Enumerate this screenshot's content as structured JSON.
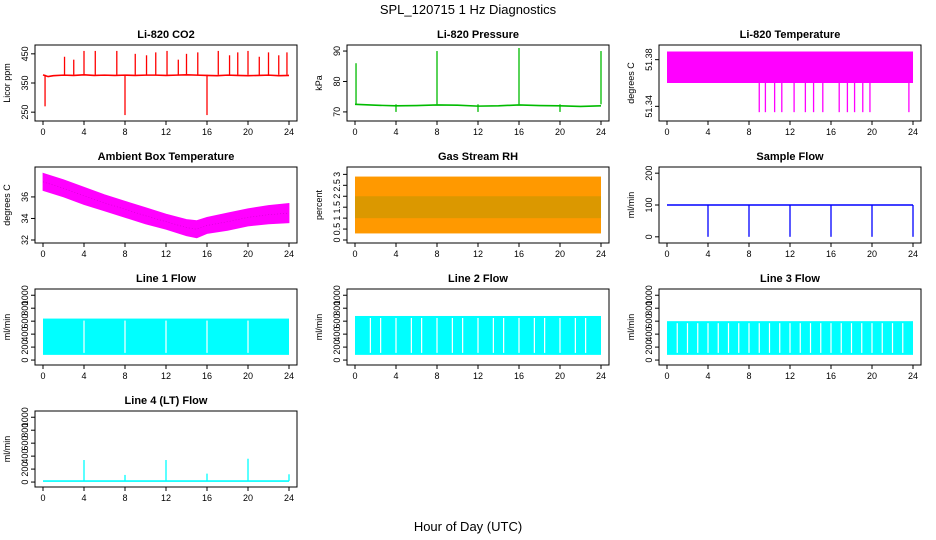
{
  "figure": {
    "title": "SPL_120715  1 Hz Diagnostics",
    "xlabel": "Hour of Day (UTC)"
  },
  "chart_data": [
    {
      "type": "line",
      "title": "Li-820 CO2",
      "ylabel": "Licor ppm",
      "color": "#ff0000",
      "xlim": [
        0,
        24
      ],
      "ylim": [
        230,
        470
      ],
      "xticks": [
        0,
        4,
        8,
        12,
        16,
        20,
        24
      ],
      "yticks": [
        250,
        350,
        450
      ],
      "x": [
        0,
        0.5,
        1,
        2,
        3,
        4,
        5,
        6,
        7,
        8,
        9,
        10,
        11,
        12,
        13,
        14,
        15,
        16,
        17,
        18,
        19,
        20,
        21,
        22,
        23,
        24
      ],
      "y": [
        378,
        372,
        375,
        377,
        376,
        378,
        376,
        377,
        376,
        377,
        376,
        377,
        377,
        376,
        377,
        378,
        377,
        376,
        375,
        377,
        376,
        375,
        376,
        377,
        375,
        376
      ],
      "spikes": [
        {
          "x": 0.2,
          "y": 270
        },
        {
          "x": 2.1,
          "y": 440
        },
        {
          "x": 3.0,
          "y": 430
        },
        {
          "x": 4.0,
          "y": 460
        },
        {
          "x": 5.1,
          "y": 460
        },
        {
          "x": 7.2,
          "y": 460
        },
        {
          "x": 8.0,
          "y": 240
        },
        {
          "x": 9.0,
          "y": 450
        },
        {
          "x": 10.1,
          "y": 445
        },
        {
          "x": 11.0,
          "y": 455
        },
        {
          "x": 12.1,
          "y": 460
        },
        {
          "x": 13.2,
          "y": 430
        },
        {
          "x": 14.0,
          "y": 450
        },
        {
          "x": 15.1,
          "y": 455
        },
        {
          "x": 16.0,
          "y": 240
        },
        {
          "x": 17.1,
          "y": 460
        },
        {
          "x": 18.2,
          "y": 445
        },
        {
          "x": 19.0,
          "y": 455
        },
        {
          "x": 20.0,
          "y": 460
        },
        {
          "x": 21.1,
          "y": 440
        },
        {
          "x": 22.0,
          "y": 455
        },
        {
          "x": 23.0,
          "y": 445
        },
        {
          "x": 23.8,
          "y": 455
        }
      ]
    },
    {
      "type": "line",
      "title": "Li-820 Pressure",
      "ylabel": "kPa",
      "color": "#00bb00",
      "xlim": [
        0,
        24
      ],
      "ylim": [
        68,
        91
      ],
      "xticks": [
        0,
        4,
        8,
        12,
        16,
        20,
        24
      ],
      "yticks": [
        70,
        80,
        90
      ],
      "x": [
        0,
        2,
        4,
        6,
        8,
        10,
        12,
        14,
        16,
        18,
        20,
        22,
        24
      ],
      "y": [
        72.5,
        72.2,
        72.0,
        72.1,
        72.3,
        72.2,
        71.9,
        72.0,
        72.3,
        72.1,
        72.0,
        71.8,
        72.0
      ],
      "spikes": [
        {
          "x": 0.1,
          "y": 86
        },
        {
          "x": 4.0,
          "y": 70
        },
        {
          "x": 8.0,
          "y": 90
        },
        {
          "x": 12.0,
          "y": 70
        },
        {
          "x": 16.0,
          "y": 91
        },
        {
          "x": 20.0,
          "y": 70
        },
        {
          "x": 24.0,
          "y": 90
        }
      ]
    },
    {
      "type": "area",
      "title": "Li-820 Temperature",
      "ylabel": "degrees C",
      "color": "#ff00ff",
      "xlim": [
        0,
        24
      ],
      "ylim": [
        51.33,
        51.39
      ],
      "xticks": [
        0,
        4,
        8,
        12,
        16,
        20,
        24
      ],
      "yticks": [
        51.34,
        51.38
      ],
      "band": [
        51.36,
        51.387
      ],
      "spikes": [
        {
          "x": 9.0,
          "y": 51.335
        },
        {
          "x": 9.6,
          "y": 51.335
        },
        {
          "x": 10.5,
          "y": 51.335
        },
        {
          "x": 11.2,
          "y": 51.335
        },
        {
          "x": 12.4,
          "y": 51.335
        },
        {
          "x": 13.5,
          "y": 51.335
        },
        {
          "x": 14.3,
          "y": 51.335
        },
        {
          "x": 15.2,
          "y": 51.335
        },
        {
          "x": 16.8,
          "y": 51.335
        },
        {
          "x": 17.6,
          "y": 51.335
        },
        {
          "x": 18.3,
          "y": 51.335
        },
        {
          "x": 19.1,
          "y": 51.335
        },
        {
          "x": 19.8,
          "y": 51.335
        },
        {
          "x": 23.6,
          "y": 51.335
        }
      ]
    },
    {
      "type": "area",
      "title": "Ambient Box Temperature",
      "ylabel": "degrees C",
      "color": "#ff00ff",
      "xlim": [
        0,
        24
      ],
      "ylim": [
        32,
        38.5
      ],
      "xticks": [
        0,
        4,
        8,
        12,
        16,
        20,
        24
      ],
      "yticks": [
        32,
        34,
        36
      ],
      "x": [
        0,
        2,
        4,
        6,
        8,
        10,
        12,
        14,
        15,
        16,
        18,
        20,
        22,
        24
      ],
      "y_low": [
        36.6,
        36.0,
        35.3,
        34.7,
        34.1,
        33.5,
        33.0,
        32.4,
        32.2,
        32.6,
        32.9,
        33.3,
        33.5,
        33.6
      ],
      "y_high": [
        38.2,
        37.6,
        36.9,
        36.2,
        35.6,
        35.0,
        34.4,
        33.9,
        33.8,
        34.1,
        34.5,
        34.9,
        35.2,
        35.4
      ]
    },
    {
      "type": "area",
      "title": "Gas Stream RH",
      "ylabel": "percent",
      "color": "#ff9900",
      "color2": "#999900",
      "xlim": [
        0,
        24
      ],
      "ylim": [
        0,
        3.2
      ],
      "xticks": [
        0,
        4,
        8,
        12,
        16,
        20,
        24
      ],
      "yticks": [
        0.0,
        0.5,
        1.0,
        1.5,
        2.0,
        2.5,
        3.0
      ],
      "band": [
        0.3,
        2.9
      ],
      "core": [
        1.0,
        2.0
      ]
    },
    {
      "type": "line",
      "title": "Sample Flow",
      "ylabel": "ml/min",
      "color": "#0000ff",
      "xlim": [
        0,
        24
      ],
      "ylim": [
        -10,
        210
      ],
      "xticks": [
        0,
        4,
        8,
        12,
        16,
        20,
        24
      ],
      "yticks": [
        0,
        100,
        200
      ],
      "x": [
        0,
        24
      ],
      "y": [
        100,
        100
      ],
      "spikes": [
        {
          "x": 4.0,
          "y": 0
        },
        {
          "x": 8.0,
          "y": 0
        },
        {
          "x": 12.0,
          "y": 0
        },
        {
          "x": 16.0,
          "y": 0
        },
        {
          "x": 20.0,
          "y": 0
        },
        {
          "x": 24.0,
          "y": 0
        }
      ]
    },
    {
      "type": "area",
      "title": "Line 1 Flow",
      "ylabel": "ml/min",
      "color": "#00ffff",
      "xlim": [
        0,
        24
      ],
      "ylim": [
        -30,
        1050
      ],
      "xticks": [
        0,
        4,
        8,
        12,
        16,
        20,
        24
      ],
      "yticks": [
        0,
        200,
        400,
        600,
        800,
        1000
      ],
      "band": [
        80,
        640
      ],
      "gaps": [
        4.0,
        8.0,
        12.0,
        16.0,
        20.0
      ]
    },
    {
      "type": "area",
      "title": "Line 2 Flow",
      "ylabel": "ml/min",
      "color": "#00ffff",
      "xlim": [
        0,
        24
      ],
      "ylim": [
        -30,
        1050
      ],
      "xticks": [
        0,
        4,
        8,
        12,
        16,
        20,
        24
      ],
      "yticks": [
        0,
        200,
        400,
        600,
        800,
        1000
      ],
      "band": [
        80,
        680
      ],
      "gaps": [
        1.5,
        2.5,
        4.0,
        5.5,
        6.5,
        8.0,
        9.5,
        10.5,
        12.0,
        13.5,
        14.5,
        16.0,
        17.5,
        18.5,
        20.0,
        21.5,
        22.5
      ]
    },
    {
      "type": "area",
      "title": "Line 3 Flow",
      "ylabel": "ml/min",
      "color": "#00ffff",
      "xlim": [
        0,
        24
      ],
      "ylim": [
        -30,
        1050
      ],
      "xticks": [
        0,
        4,
        8,
        12,
        16,
        20,
        24
      ],
      "yticks": [
        0,
        200,
        400,
        600,
        800,
        1000
      ],
      "band": [
        80,
        600
      ],
      "gaps": [
        1.0,
        2.0,
        3.0,
        4.0,
        5.0,
        6.0,
        7.0,
        8.0,
        9.0,
        10.0,
        11.0,
        12.0,
        13.0,
        14.0,
        15.0,
        16.0,
        17.0,
        18.0,
        19.0,
        20.0,
        21.0,
        22.0,
        23.0
      ]
    },
    {
      "type": "line",
      "title": "Line 4 (LT) Flow",
      "ylabel": "ml/min",
      "color": "#00ffff",
      "xlim": [
        0,
        24
      ],
      "ylim": [
        -30,
        1050
      ],
      "xticks": [
        0,
        4,
        8,
        12,
        16,
        20,
        24
      ],
      "yticks": [
        0,
        200,
        400,
        600,
        800,
        1000
      ],
      "x": [
        0,
        24
      ],
      "y": [
        15,
        15
      ],
      "spikes": [
        {
          "x": 4.0,
          "y": 340
        },
        {
          "x": 8.0,
          "y": 110
        },
        {
          "x": 12.0,
          "y": 340
        },
        {
          "x": 16.0,
          "y": 130
        },
        {
          "x": 20.0,
          "y": 360
        },
        {
          "x": 24.0,
          "y": 120
        }
      ]
    }
  ]
}
